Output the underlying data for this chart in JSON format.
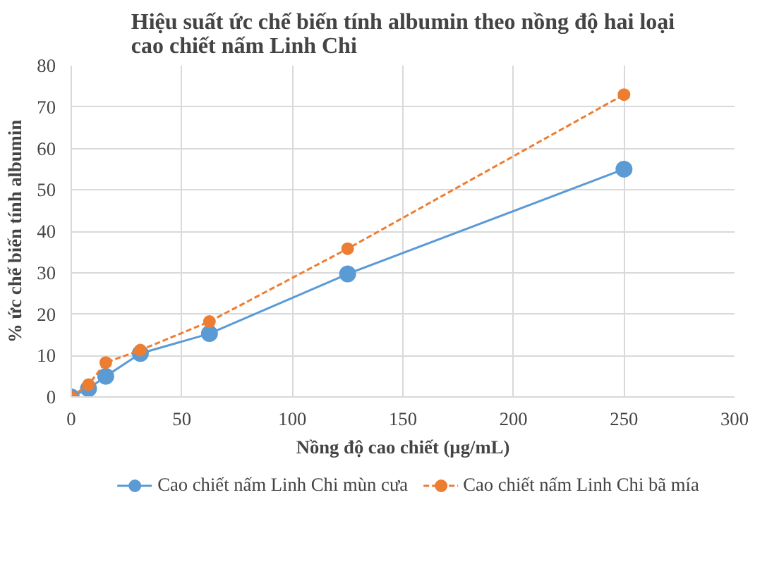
{
  "chart_data": {
    "type": "line",
    "title": "Hiệu suất ức chế biến tính albumin theo nồng độ hai loại\ncao chiết nấm Linh Chi",
    "xlabel": "Nồng độ cao chiết (µg/mL)",
    "ylabel": "% ức chế biến tính albumin",
    "x": [
      0,
      7.8,
      15.6,
      31.25,
      62.5,
      125,
      250
    ],
    "series": [
      {
        "name": "Cao chiết nấm Linh Chi mùn cưa",
        "color": "#5b9bd5",
        "line_style": "solid",
        "values": [
          0,
          2,
          5,
          10.5,
          15.3,
          29.7,
          55
        ]
      },
      {
        "name": "Cao chiết nấm Linh Chi bã mía",
        "color": "#ed7d31",
        "line_style": "dashed",
        "values": [
          0,
          3,
          8.3,
          11.3,
          18.2,
          35.8,
          73
        ]
      }
    ],
    "xlim": [
      0,
      300
    ],
    "xticks": [
      0,
      50,
      100,
      150,
      200,
      250,
      300
    ],
    "ylim": [
      0,
      80
    ],
    "yticks": [
      0,
      10,
      20,
      30,
      40,
      50,
      60,
      70,
      80
    ],
    "grid": true,
    "legend": "bottom",
    "marker": "circle"
  }
}
